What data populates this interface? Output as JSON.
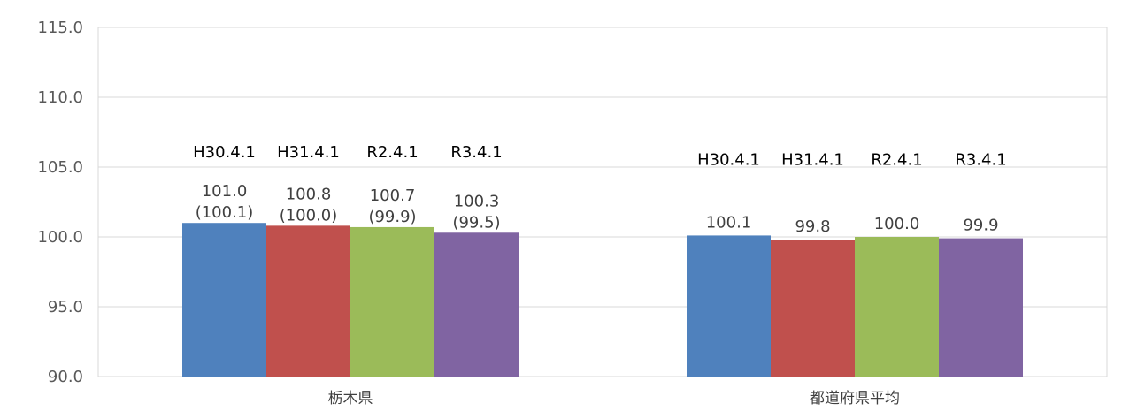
{
  "chart_data": {
    "type": "bar",
    "ylim": [
      90.0,
      115.0
    ],
    "y_ticks": [
      "90.0",
      "95.0",
      "100.0",
      "105.0",
      "110.0",
      "115.0"
    ],
    "grid": true,
    "categories": [
      "栃木県",
      "都道府県平均"
    ],
    "series": [
      {
        "name": "H30.4.1",
        "color": "#4f81bd",
        "values": [
          101.0,
          100.1
        ]
      },
      {
        "name": "H31.4.1",
        "color": "#c0504d",
        "values": [
          100.8,
          99.8
        ]
      },
      {
        "name": "R2.4.1",
        "color": "#9bbb59",
        "values": [
          100.7,
          100.0
        ]
      },
      {
        "name": "R3.4.1",
        "color": "#8064a2",
        "values": [
          100.3,
          99.9
        ]
      }
    ],
    "value_labels": [
      [
        "101.0",
        "100.8",
        "100.7",
        "100.3"
      ],
      [
        "100.1",
        "99.8",
        "100.0",
        "99.9"
      ]
    ],
    "sub_labels": [
      [
        "(100.1)",
        "(100.0)",
        "(99.9)",
        "(99.5)"
      ],
      [
        "",
        "",
        "",
        ""
      ]
    ]
  }
}
